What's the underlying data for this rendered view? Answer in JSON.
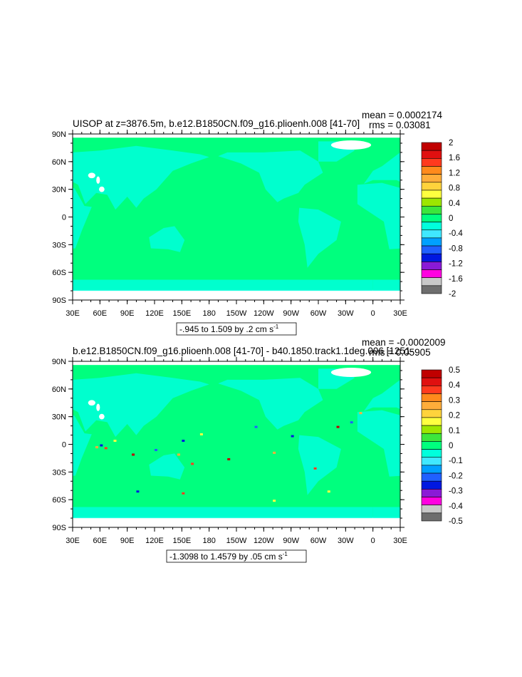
{
  "chart_data": [
    {
      "type": "heatmap",
      "title": "UISOP at z=3876.5m, b.e12.B1850CN.f09_g16.plioenh.008 [41-70]",
      "mean_text": "mean = 0.0002174",
      "rms_text": "rms = 0.03081",
      "range_text": "-.945 to 1.509 by .2 cm s",
      "range_units_sup": "-1",
      "x_ticks": [
        "30E",
        "60E",
        "90E",
        "120E",
        "150E",
        "180",
        "150W",
        "120W",
        "90W",
        "60W",
        "30W",
        "0",
        "30E"
      ],
      "y_ticks": [
        "90N",
        "60N",
        "30N",
        "0",
        "30S",
        "60S",
        "90S"
      ],
      "xlim": [
        30,
        390
      ],
      "ylim": [
        -90,
        90
      ],
      "legend_levels": [
        "2",
        "1.6",
        "1.2",
        "0.8",
        "0.4",
        "0",
        "-0.4",
        "-0.8",
        "-1.2",
        "-1.6",
        "-2"
      ],
      "legend_colors": [
        "#c00000",
        "#e01010",
        "#ff3a1e",
        "#ff8a1c",
        "#ffad3a",
        "#ffd33c",
        "#ffff40",
        "#9de600",
        "#3ce63c",
        "#00ff7e",
        "#00ffdc",
        "#40e8ff",
        "#00a0ff",
        "#2060ff",
        "#0018e0",
        "#8a1ad6",
        "#ff00e0",
        "#c8c8c8",
        "#6e6e6e"
      ]
    },
    {
      "type": "heatmap",
      "title": "b.e12.B1850CN.f09_g16.plioenh.008 [41-70] - b40.1850.track1.1deg.006 [1251-",
      "mean_text": "mean = -0.0002009",
      "rms_text": "rms = 0.05905",
      "range_text": "-1.3098 to 1.4579 by .05 cm s",
      "range_units_sup": "-1",
      "x_ticks": [
        "30E",
        "60E",
        "90E",
        "120E",
        "150E",
        "180",
        "150W",
        "120W",
        "90W",
        "60W",
        "30W",
        "0",
        "30E"
      ],
      "y_ticks": [
        "90N",
        "60N",
        "30N",
        "0",
        "30S",
        "60S",
        "90S"
      ],
      "xlim": [
        30,
        390
      ],
      "ylim": [
        -90,
        90
      ],
      "legend_levels": [
        "0.5",
        "0.4",
        "0.3",
        "0.2",
        "0.1",
        "0",
        "-0.1",
        "-0.2",
        "-0.3",
        "-0.4",
        "-0.5"
      ],
      "legend_colors": [
        "#c00000",
        "#e01010",
        "#ff3a1e",
        "#ff8a1c",
        "#ffad3a",
        "#ffd33c",
        "#ffff40",
        "#9de600",
        "#3ce63c",
        "#00ff7e",
        "#00ffdc",
        "#40e8ff",
        "#00a0ff",
        "#2060ff",
        "#0018e0",
        "#8a1ad6",
        "#ff00e0",
        "#c8c8c8",
        "#6e6e6e"
      ]
    }
  ],
  "field_colors": {
    "ocean": "#00ff7e",
    "land": "#00ffdc",
    "missing": "#ffffff"
  }
}
